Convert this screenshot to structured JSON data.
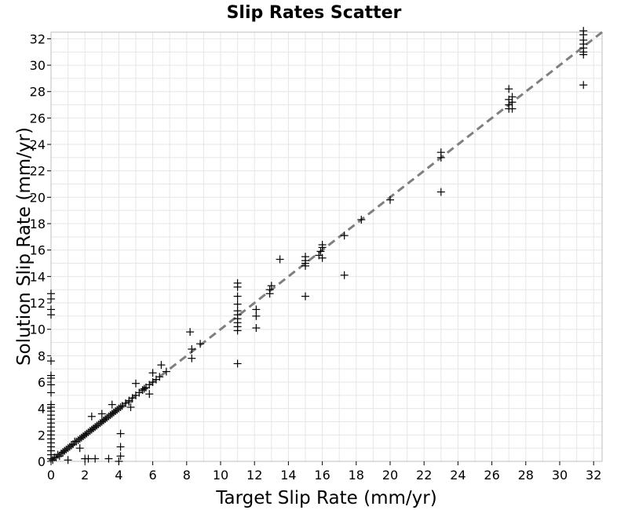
{
  "chart_data": {
    "type": "scatter",
    "title": "Slip Rates Scatter",
    "xlabel": "Target Slip Rate (mm/yr)",
    "ylabel": "Solution Slip Rate (mm/yr)",
    "xlim": [
      0,
      32.5
    ],
    "ylim": [
      0,
      32.5
    ],
    "x_ticks": [
      0,
      2,
      4,
      6,
      8,
      10,
      12,
      14,
      16,
      18,
      20,
      22,
      24,
      26,
      28,
      30,
      32
    ],
    "y_ticks": [
      0,
      2,
      4,
      6,
      8,
      10,
      12,
      14,
      16,
      18,
      20,
      22,
      24,
      26,
      28,
      30,
      32
    ],
    "grid": true,
    "marker": "plus",
    "marker_color": "#000000",
    "reference_line": {
      "style": "dashed",
      "color": "#7f7f7f",
      "from": [
        0,
        0
      ],
      "to": [
        32.5,
        32.5
      ]
    },
    "points": [
      [
        0,
        0.2
      ],
      [
        0,
        0.5
      ],
      [
        0,
        0.8
      ],
      [
        0,
        1.1
      ],
      [
        0,
        1.4
      ],
      [
        0,
        1.7
      ],
      [
        0,
        2.0
      ],
      [
        0,
        2.3
      ],
      [
        0,
        2.6
      ],
      [
        0,
        2.9
      ],
      [
        0,
        3.2
      ],
      [
        0,
        3.5
      ],
      [
        0,
        3.8
      ],
      [
        0,
        4.1
      ],
      [
        0,
        4.3
      ],
      [
        0,
        5.2
      ],
      [
        0,
        5.8
      ],
      [
        0,
        6.3
      ],
      [
        0,
        6.5
      ],
      [
        0,
        7.6
      ],
      [
        0,
        11.1
      ],
      [
        0,
        11.5
      ],
      [
        0,
        12.3
      ],
      [
        0,
        12.7
      ],
      [
        0.1,
        0.1
      ],
      [
        0.2,
        0.3
      ],
      [
        0.3,
        0.3
      ],
      [
        0.4,
        0.5
      ],
      [
        0.5,
        0.4
      ],
      [
        0.6,
        0.6
      ],
      [
        0.7,
        0.7
      ],
      [
        0.8,
        0.8
      ],
      [
        0.9,
        0.9
      ],
      [
        1.0,
        1.0
      ],
      [
        1.1,
        1.1
      ],
      [
        1.2,
        1.2
      ],
      [
        1.3,
        1.3
      ],
      [
        1.4,
        1.5
      ],
      [
        1.5,
        1.5
      ],
      [
        1.6,
        1.6
      ],
      [
        1.7,
        1.7
      ],
      [
        1.8,
        1.8
      ],
      [
        1.9,
        1.9
      ],
      [
        2.0,
        2.0
      ],
      [
        2.1,
        2.1
      ],
      [
        2.2,
        2.2
      ],
      [
        2.3,
        2.3
      ],
      [
        2.4,
        2.4
      ],
      [
        2.5,
        2.5
      ],
      [
        2.6,
        2.6
      ],
      [
        2.7,
        2.7
      ],
      [
        2.8,
        2.8
      ],
      [
        2.9,
        2.9
      ],
      [
        3.0,
        3.0
      ],
      [
        3.1,
        3.1
      ],
      [
        3.2,
        3.2
      ],
      [
        3.3,
        3.3
      ],
      [
        3.4,
        3.4
      ],
      [
        3.5,
        3.5
      ],
      [
        3.6,
        3.6
      ],
      [
        3.7,
        3.7
      ],
      [
        3.8,
        3.8
      ],
      [
        3.9,
        3.9
      ],
      [
        4.0,
        4.0
      ],
      [
        4.1,
        4.1
      ],
      [
        4.2,
        4.2
      ],
      [
        4.4,
        4.4
      ],
      [
        4.6,
        4.5
      ],
      [
        4.8,
        4.8
      ],
      [
        5.0,
        5.0
      ],
      [
        5.2,
        5.2
      ],
      [
        5.4,
        5.4
      ],
      [
        5.6,
        5.6
      ],
      [
        5.8,
        5.8
      ],
      [
        6.0,
        6.0
      ],
      [
        6.2,
        6.2
      ],
      [
        6.4,
        6.4
      ],
      [
        1.0,
        0.1
      ],
      [
        1.7,
        1.0
      ],
      [
        2.0,
        0.2
      ],
      [
        2.2,
        0.2
      ],
      [
        2.4,
        3.4
      ],
      [
        2.6,
        0.2
      ],
      [
        3.0,
        3.6
      ],
      [
        3.4,
        0.2
      ],
      [
        3.6,
        4.3
      ],
      [
        4.0,
        0.0
      ],
      [
        4.1,
        0.4
      ],
      [
        4.1,
        1.1
      ],
      [
        4.1,
        2.1
      ],
      [
        4.6,
        4.6
      ],
      [
        4.7,
        4.1
      ],
      [
        5.0,
        5.9
      ],
      [
        5.5,
        5.5
      ],
      [
        5.8,
        5.1
      ],
      [
        6.0,
        6.7
      ],
      [
        6.5,
        7.3
      ],
      [
        6.8,
        6.8
      ],
      [
        8.2,
        9.8
      ],
      [
        8.3,
        8.5
      ],
      [
        8.3,
        7.8
      ],
      [
        8.8,
        8.9
      ],
      [
        11.0,
        7.4
      ],
      [
        11.0,
        13.5
      ],
      [
        11.0,
        13.2
      ],
      [
        11.0,
        12.5
      ],
      [
        11.0,
        11.9
      ],
      [
        11.0,
        11.4
      ],
      [
        11.0,
        11.1
      ],
      [
        11.0,
        10.8
      ],
      [
        11.0,
        10.5
      ],
      [
        11.0,
        10.2
      ],
      [
        11.0,
        9.9
      ],
      [
        12.1,
        10.1
      ],
      [
        12.1,
        11.0
      ],
      [
        12.1,
        11.5
      ],
      [
        12.9,
        12.7
      ],
      [
        12.9,
        13.0
      ],
      [
        13.0,
        13.3
      ],
      [
        13.5,
        15.3
      ],
      [
        15.0,
        12.5
      ],
      [
        15.0,
        14.8
      ],
      [
        15.0,
        15.0
      ],
      [
        15.0,
        15.2
      ],
      [
        15.0,
        15.5
      ],
      [
        15.8,
        15.6
      ],
      [
        15.9,
        15.9
      ],
      [
        16.0,
        16.2
      ],
      [
        16.0,
        15.4
      ],
      [
        16.0,
        16.4
      ],
      [
        17.3,
        14.1
      ],
      [
        17.3,
        17.1
      ],
      [
        18.3,
        18.3
      ],
      [
        20.0,
        19.8
      ],
      [
        23.0,
        20.4
      ],
      [
        23.0,
        23.0
      ],
      [
        23.0,
        23.4
      ],
      [
        27.0,
        26.7
      ],
      [
        27.0,
        27.0
      ],
      [
        27.0,
        27.4
      ],
      [
        27.0,
        28.2
      ],
      [
        27.2,
        26.7
      ],
      [
        27.2,
        27.2
      ],
      [
        27.2,
        27.6
      ],
      [
        31.4,
        28.5
      ],
      [
        31.4,
        30.8
      ],
      [
        31.4,
        31.0
      ],
      [
        31.4,
        31.3
      ],
      [
        31.4,
        31.6
      ],
      [
        31.4,
        31.9
      ],
      [
        31.4,
        32.3
      ],
      [
        31.4,
        32.6
      ]
    ]
  }
}
